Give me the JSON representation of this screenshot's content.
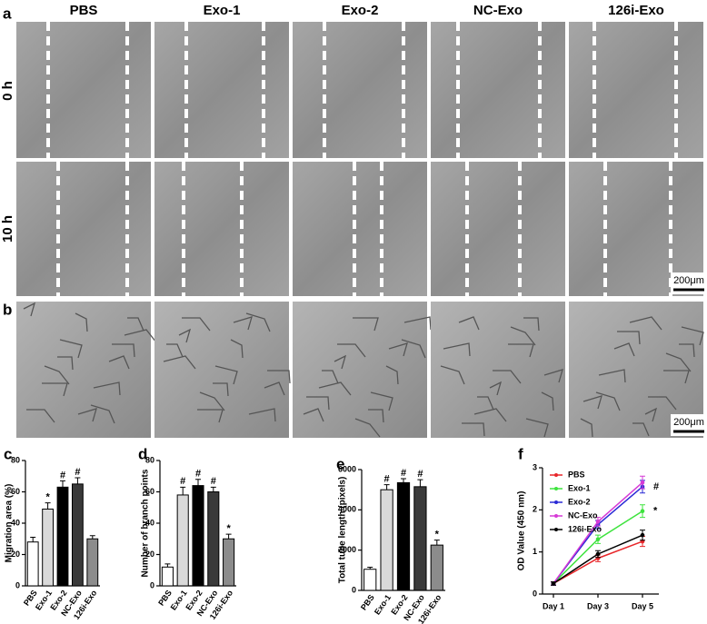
{
  "figure": {
    "columns": [
      "PBS",
      "Exo-1",
      "Exo-2",
      "NC-Exo",
      "126i-Exo"
    ],
    "rows": [
      "0 h",
      "10 h"
    ],
    "panels": [
      "a",
      "b"
    ],
    "scale_bars": [
      "200μm",
      "200μm"
    ]
  },
  "chart_data": [
    {
      "panel": "c",
      "type": "bar",
      "ylabel": "Migration area (%)",
      "categories": [
        "PBS",
        "Exo-1",
        "Exo-2",
        "NC-Exo",
        "126i-Exo"
      ],
      "values": [
        28,
        49,
        63,
        65,
        30
      ],
      "errors": [
        3,
        4,
        4,
        4,
        2
      ],
      "annotations": [
        null,
        "*",
        "#",
        "#",
        null
      ],
      "colors": [
        "#ffffff",
        "#d9d9d9",
        "#000000",
        "#3a3a3a",
        "#8c8c8c"
      ],
      "ylim": [
        0,
        80
      ],
      "yticks": [
        0,
        20,
        40,
        60,
        80
      ]
    },
    {
      "panel": "d",
      "type": "bar",
      "ylabel": "Number of branch points",
      "categories": [
        "PBS",
        "Exo-1",
        "Exo-2",
        "NC-Exo",
        "126i-Exo"
      ],
      "values": [
        12,
        58,
        64,
        60,
        30
      ],
      "errors": [
        2,
        5,
        4,
        3,
        3
      ],
      "annotations": [
        null,
        "#",
        "#",
        "#",
        "*"
      ],
      "colors": [
        "#ffffff",
        "#d9d9d9",
        "#000000",
        "#3a3a3a",
        "#8c8c8c"
      ],
      "ylim": [
        0,
        80
      ],
      "yticks": [
        0,
        20,
        40,
        60,
        80
      ]
    },
    {
      "panel": "e",
      "type": "bar",
      "ylabel": "Total tube length (pixels)",
      "categories": [
        "PBS",
        "Exo-1",
        "Exo-2",
        "NC-Exo",
        "126i-Exo"
      ],
      "values": [
        1050,
        5000,
        5350,
        5150,
        2250
      ],
      "errors": [
        100,
        250,
        200,
        350,
        250
      ],
      "annotations": [
        null,
        "#",
        "#",
        "#",
        "*"
      ],
      "colors": [
        "#ffffff",
        "#d9d9d9",
        "#000000",
        "#3a3a3a",
        "#8c8c8c"
      ],
      "ylim": [
        0,
        6000
      ],
      "yticks": [
        0,
        2000,
        4000,
        6000
      ]
    },
    {
      "panel": "f",
      "type": "line",
      "ylabel": "OD Value (450 nm)",
      "categories": [
        "Day 1",
        "Day 3",
        "Day 5"
      ],
      "legend": "upper left",
      "ylim": [
        0,
        3
      ],
      "yticks": [
        0,
        1,
        2,
        3
      ],
      "series": [
        {
          "name": "PBS",
          "color": "#e8262a",
          "values": [
            0.25,
            0.85,
            1.25
          ],
          "errors": [
            0.04,
            0.08,
            0.12
          ]
        },
        {
          "name": "Exo-1",
          "color": "#3ee33e",
          "values": [
            0.25,
            1.3,
            1.97
          ],
          "errors": [
            0.04,
            0.1,
            0.15
          ],
          "annotation": "*"
        },
        {
          "name": "Exo-2",
          "color": "#2a2ad6",
          "values": [
            0.25,
            1.65,
            2.55
          ],
          "errors": [
            0.04,
            0.1,
            0.15
          ],
          "annotation": "#"
        },
        {
          "name": "NC-Exo",
          "color": "#d63ad6",
          "values": [
            0.25,
            1.72,
            2.65
          ],
          "errors": [
            0.04,
            0.1,
            0.15
          ]
        },
        {
          "name": "126i-Exo",
          "color": "#000000",
          "values": [
            0.25,
            0.95,
            1.4
          ],
          "errors": [
            0.04,
            0.08,
            0.12
          ]
        }
      ]
    }
  ]
}
